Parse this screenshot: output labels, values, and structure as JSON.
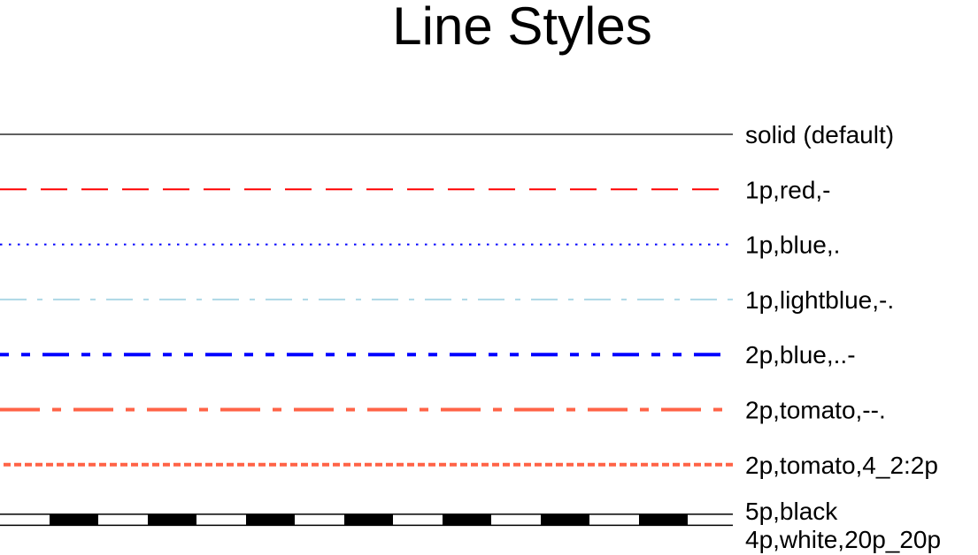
{
  "title": "Line Styles",
  "lines": [
    {
      "label": "solid (default)",
      "color": "#000000",
      "pen_width_pt": 0.25,
      "pattern": "solid"
    },
    {
      "label": "1p,red,-",
      "color": "#ff0000",
      "pen_width_pt": 1,
      "pattern": "-"
    },
    {
      "label": "1p,blue,.",
      "color": "#0000ff",
      "pen_width_pt": 1,
      "pattern": "."
    },
    {
      "label": "1p,lightblue,-.",
      "color": "#add8e6",
      "pen_width_pt": 1,
      "pattern": "-."
    },
    {
      "label": "2p,blue,..-",
      "color": "#0000ff",
      "pen_width_pt": 2,
      "pattern": "..-"
    },
    {
      "label": "2p,tomato,--.",
      "color": "#ff6347",
      "pen_width_pt": 2,
      "pattern": "--."
    },
    {
      "label": "2p,tomato,4_2:2p",
      "color": "#ff6347",
      "pen_width_pt": 2,
      "pattern": "4_2:2p"
    }
  ],
  "composite_line": {
    "outer_label": "5p,black",
    "outer_color": "#000000",
    "outer_width_pt": 5,
    "inner_label": "4p,white,20p_20p",
    "inner_color": "#ffffff",
    "inner_width_pt": 4,
    "inner_pattern": "20p_20p"
  }
}
